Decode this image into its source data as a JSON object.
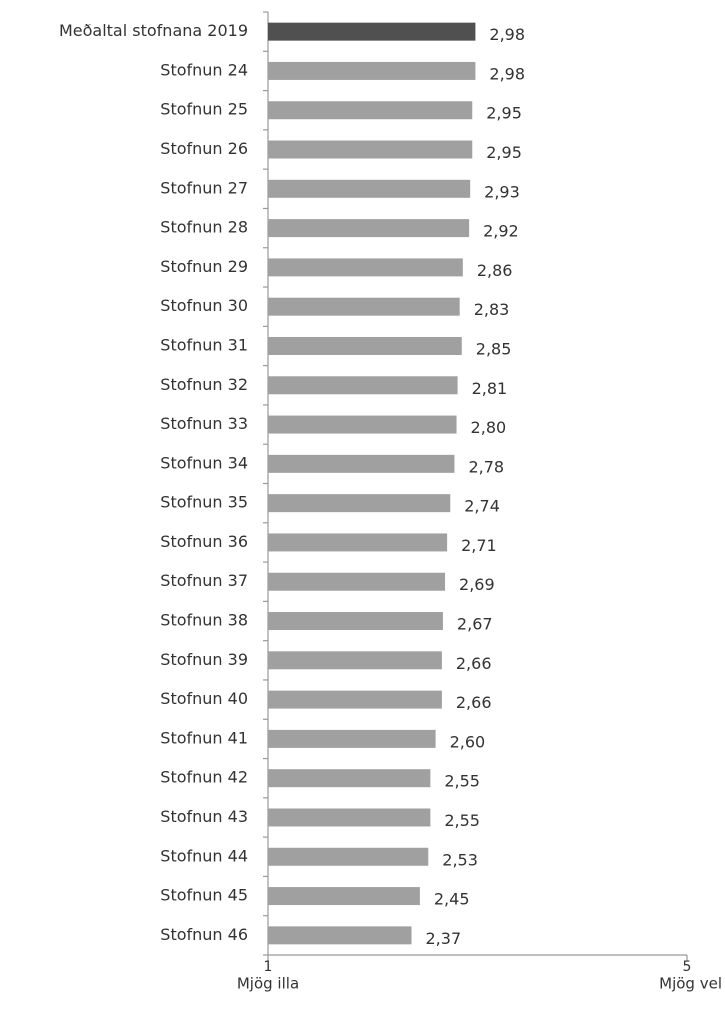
{
  "chart_data": {
    "type": "hbar",
    "categories": [
      "Meðaltal stofnana 2019",
      "Stofnun 24",
      "Stofnun 25",
      "Stofnun 26",
      "Stofnun 27",
      "Stofnun 28",
      "Stofnun 29",
      "Stofnun 30",
      "Stofnun 31",
      "Stofnun 32",
      "Stofnun 33",
      "Stofnun 34",
      "Stofnun 35",
      "Stofnun 36",
      "Stofnun 37",
      "Stofnun 38",
      "Stofnun 39",
      "Stofnun 40",
      "Stofnun 41",
      "Stofnun 42",
      "Stofnun 43",
      "Stofnun 44",
      "Stofnun 45",
      "Stofnun 46"
    ],
    "values": [
      2.98,
      2.98,
      2.95,
      2.95,
      2.93,
      2.92,
      2.86,
      2.83,
      2.85,
      2.81,
      2.8,
      2.78,
      2.74,
      2.71,
      2.69,
      2.67,
      2.66,
      2.66,
      2.6,
      2.55,
      2.55,
      2.53,
      2.45,
      2.37
    ],
    "value_labels": [
      "2,98",
      "2,98",
      "2,95",
      "2,95",
      "2,93",
      "2,92",
      "2,86",
      "2,83",
      "2,85",
      "2,81",
      "2,80",
      "2,78",
      "2,74",
      "2,71",
      "2,69",
      "2,67",
      "2,66",
      "2,66",
      "2,60",
      "2,55",
      "2,55",
      "2,53",
      "2,45",
      "2,37"
    ],
    "colors": [
      "#505050",
      "#a0a0a0",
      "#a0a0a0",
      "#a0a0a0",
      "#a0a0a0",
      "#a0a0a0",
      "#a0a0a0",
      "#a0a0a0",
      "#a0a0a0",
      "#a0a0a0",
      "#a0a0a0",
      "#a0a0a0",
      "#a0a0a0",
      "#a0a0a0",
      "#a0a0a0",
      "#a0a0a0",
      "#a0a0a0",
      "#a0a0a0",
      "#a0a0a0",
      "#a0a0a0",
      "#a0a0a0",
      "#a0a0a0",
      "#a0a0a0",
      "#a0a0a0"
    ],
    "xlim": [
      1,
      5
    ],
    "xticks": [
      1,
      5
    ],
    "xtick_captions": [
      "Mjög illa",
      "Mjög vel"
    ]
  }
}
